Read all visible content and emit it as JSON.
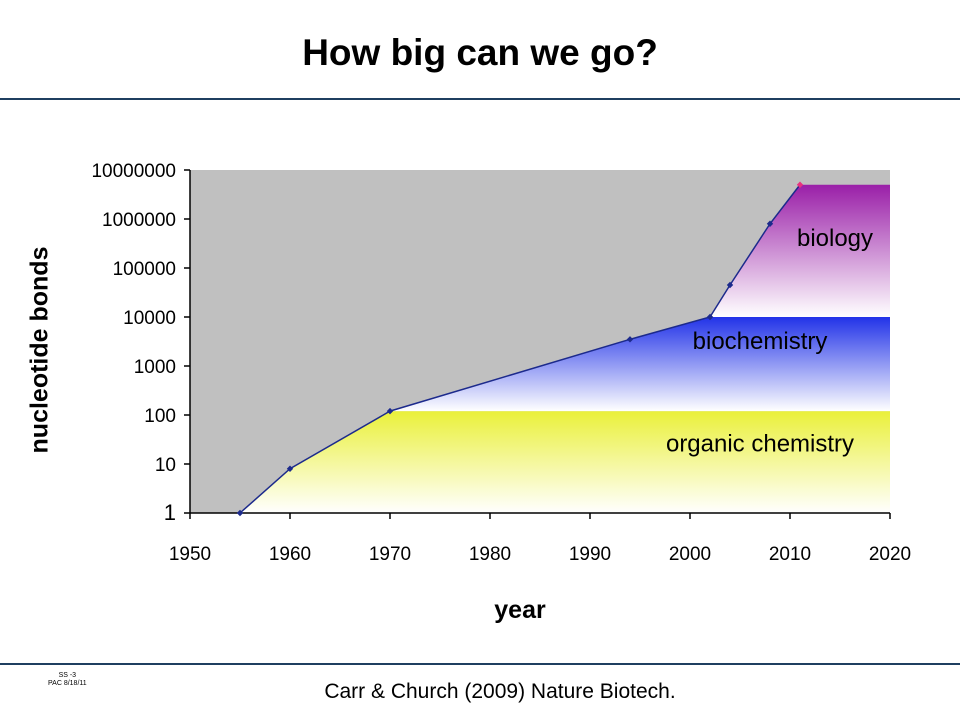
{
  "slide": {
    "title": "How big can we go?",
    "citation": "Carr & Church (2009) Nature Biotech.",
    "footer_id_line1": "SS -3",
    "footer_id_line2": "PAC 8/18/11"
  },
  "chart_data": {
    "type": "line",
    "xlabel": "year",
    "ylabel": "nucleotide bonds",
    "x_ticks": [
      1950,
      1960,
      1970,
      1980,
      1990,
      2000,
      2010,
      2020
    ],
    "y_ticks": [
      1,
      10,
      100,
      1000,
      10000,
      100000,
      1000000,
      10000000
    ],
    "y_tick_labels": [
      "1",
      "10",
      "100",
      "1000",
      "10000",
      "100000",
      "1000000",
      "10000000"
    ],
    "xlim": [
      1950,
      2020
    ],
    "ylim": [
      1,
      10000000
    ],
    "y_scale": "log",
    "series": [
      {
        "points": [
          {
            "x": 1955,
            "y": 1
          },
          {
            "x": 1960,
            "y": 8
          },
          {
            "x": 1970,
            "y": 120
          },
          {
            "x": 1994,
            "y": 3500
          },
          {
            "x": 2002,
            "y": 10000
          },
          {
            "x": 2004,
            "y": 45000
          },
          {
            "x": 2008,
            "y": 800000
          },
          {
            "x": 2011,
            "y": 5000000
          }
        ],
        "color": "#1c2a8c",
        "last_point_color": "#e8337f"
      }
    ],
    "regions": [
      {
        "label": "organic chemistry",
        "y_top": 120,
        "x_start": 1970,
        "colors": [
          "#eaf03a",
          "#ffffff"
        ]
      },
      {
        "label": "biochemistry",
        "y_top": 10000,
        "x_start": 2002,
        "colors": [
          "#2233e8",
          "#ffffff"
        ]
      },
      {
        "label": "biology",
        "y_top": 5000000,
        "x_start": 2011,
        "colors": [
          "#9a1fa8",
          "#ffffff"
        ]
      }
    ],
    "plot_background": "#c0c0c0",
    "grid": false,
    "legend": "none"
  }
}
